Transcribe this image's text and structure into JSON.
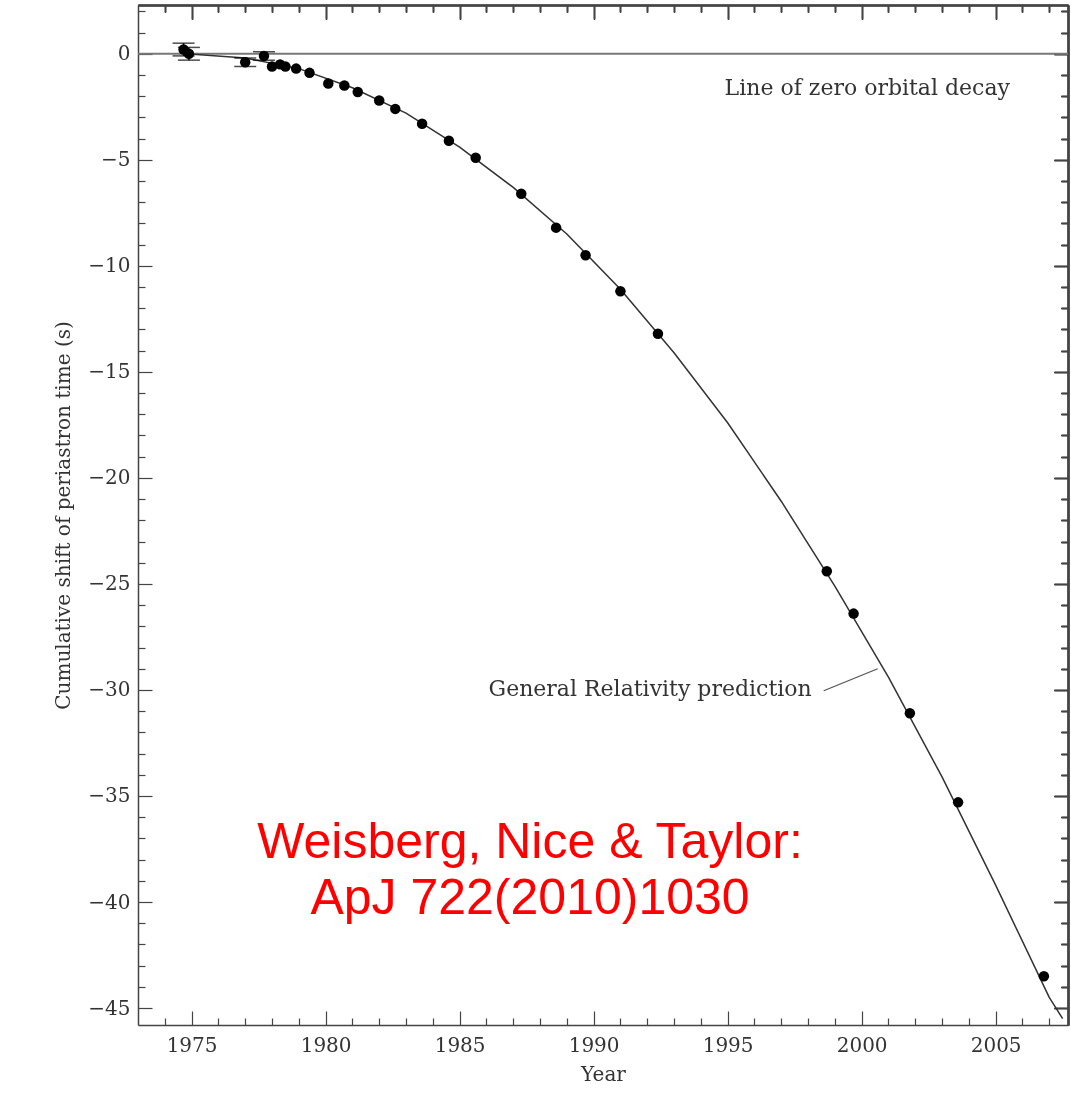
{
  "chart_data": {
    "type": "scatter",
    "xlabel": "Year",
    "ylabel": "Cumulative shift of periastron time (s)",
    "marker": "circle",
    "xlim": [
      1973.0,
      2007.7
    ],
    "ylim": [
      -45.8,
      2.3
    ],
    "xticks": [
      {
        "value": 1974,
        "label": null
      },
      1975,
      {
        "value": 1976,
        "label": null
      },
      {
        "value": 1977,
        "label": null
      },
      {
        "value": 1978,
        "label": null
      },
      {
        "value": 1979,
        "label": null
      },
      1980,
      {
        "value": 1981,
        "label": null
      },
      {
        "value": 1982,
        "label": null
      },
      {
        "value": 1983,
        "label": null
      },
      {
        "value": 1984,
        "label": null
      },
      1985,
      {
        "value": 1986,
        "label": null
      },
      {
        "value": 1987,
        "label": null
      },
      {
        "value": 1988,
        "label": null
      },
      {
        "value": 1989,
        "label": null
      },
      1990,
      {
        "value": 1991,
        "label": null
      },
      {
        "value": 1992,
        "label": null
      },
      {
        "value": 1993,
        "label": null
      },
      {
        "value": 1994,
        "label": null
      },
      1995,
      {
        "value": 1996,
        "label": null
      },
      {
        "value": 1997,
        "label": null
      },
      {
        "value": 1998,
        "label": null
      },
      {
        "value": 1999,
        "label": null
      },
      2000,
      {
        "value": 2001,
        "label": null
      },
      {
        "value": 2002,
        "label": null
      },
      {
        "value": 2003,
        "label": null
      },
      {
        "value": 2004,
        "label": null
      },
      2005,
      {
        "value": 2006,
        "label": null
      },
      {
        "value": 2007,
        "label": null
      }
    ],
    "yticks": [
      {
        "value": 2,
        "label": null
      },
      {
        "value": 1,
        "label": null
      },
      0,
      {
        "value": -1,
        "label": null
      },
      {
        "value": -2,
        "label": null
      },
      {
        "value": -3,
        "label": null
      },
      {
        "value": -4,
        "label": null
      },
      -5,
      {
        "value": -6,
        "label": null
      },
      {
        "value": -7,
        "label": null
      },
      {
        "value": -8,
        "label": null
      },
      {
        "value": -9,
        "label": null
      },
      -10,
      {
        "value": -11,
        "label": null
      },
      {
        "value": -12,
        "label": null
      },
      {
        "value": -13,
        "label": null
      },
      {
        "value": -14,
        "label": null
      },
      -15,
      {
        "value": -16,
        "label": null
      },
      {
        "value": -17,
        "label": null
      },
      {
        "value": -18,
        "label": null
      },
      {
        "value": -19,
        "label": null
      },
      -20,
      {
        "value": -21,
        "label": null
      },
      {
        "value": -22,
        "label": null
      },
      {
        "value": -23,
        "label": null
      },
      {
        "value": -24,
        "label": null
      },
      -25,
      {
        "value": -26,
        "label": null
      },
      {
        "value": -27,
        "label": null
      },
      {
        "value": -28,
        "label": null
      },
      {
        "value": -29,
        "label": null
      },
      -30,
      {
        "value": -31,
        "label": null
      },
      {
        "value": -32,
        "label": null
      },
      {
        "value": -33,
        "label": null
      },
      {
        "value": -34,
        "label": null
      },
      -35,
      {
        "value": -36,
        "label": null
      },
      {
        "value": -37,
        "label": null
      },
      {
        "value": -38,
        "label": null
      },
      {
        "value": -39,
        "label": null
      },
      -40,
      {
        "value": -41,
        "label": null
      },
      {
        "value": -42,
        "label": null
      },
      {
        "value": -43,
        "label": null
      },
      {
        "value": -44,
        "label": null
      },
      -45
    ],
    "series": [
      {
        "type": "line",
        "color": "#333333",
        "marker": "none",
        "x": [
          1974.8,
          1977,
          1979,
          1981,
          1983,
          1985,
          1987,
          1989,
          1991,
          1993,
          1995,
          1997,
          1999,
          2001,
          2003,
          2005,
          2007,
          2007.5
        ],
        "values": [
          0,
          -0.2,
          -0.7,
          -1.6,
          -2.8,
          -4.4,
          -6.3,
          -8.5,
          -11.1,
          -14.1,
          -17.4,
          -21.1,
          -25.1,
          -29.4,
          -34.1,
          -39.2,
          -44.5,
          -45.5
        ]
      },
      {
        "type": "scatter",
        "color": "#000000",
        "x": [
          1974.7,
          1974.9,
          1977.0,
          1977.7,
          1978.0,
          1978.3,
          1978.5,
          1978.9,
          1979.4,
          1980.1,
          1980.7,
          1981.2,
          1982.0,
          1982.6,
          1983.6,
          1984.6,
          1985.6,
          1987.3,
          1988.6,
          1989.7,
          1991.0,
          1992.4,
          1998.7,
          1999.7,
          2001.8,
          2003.6,
          2006.8
        ],
        "values": [
          0.2,
          0.0,
          -0.4,
          -0.1,
          -0.6,
          -0.5,
          -0.6,
          -0.7,
          -0.9,
          -1.4,
          -1.5,
          -1.8,
          -2.2,
          -2.6,
          -3.3,
          -4.1,
          -4.9,
          -6.6,
          -8.2,
          -9.5,
          -11.2,
          -13.2,
          -24.4,
          -26.4,
          -31.1,
          -35.3,
          -43.5
        ],
        "errors": [
          0.3,
          0.3,
          0.2,
          0.2,
          null,
          null,
          null,
          null,
          null,
          null,
          null,
          null,
          null,
          null,
          null,
          null,
          null,
          null,
          null,
          null,
          null,
          null,
          null,
          null,
          null,
          null,
          null
        ]
      }
    ],
    "ref_lines": [
      {
        "axis": "y",
        "value": 0,
        "label": "Line of zero orbital decay",
        "color": "#777777"
      }
    ],
    "annotations": [
      {
        "text": "General Relativity prediction",
        "x": 2000.6,
        "y": -29.0
      },
      "Weisberg, Nice & Taylor:\nApJ 722(2010)1030"
    ]
  }
}
